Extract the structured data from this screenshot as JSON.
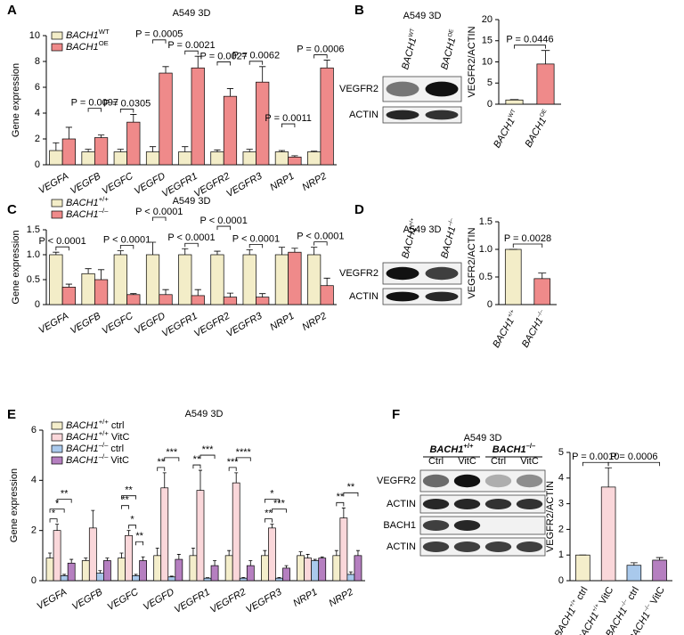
{
  "panel_labels": [
    "A",
    "B",
    "C",
    "D",
    "E",
    "F"
  ],
  "blots": [
    {
      "title": "A549 3D",
      "lanes": [
        "BACH1",
        "BACH1"
      ],
      "lane_sups": [
        "WT",
        "OE"
      ],
      "rows": [
        "VEGFR2",
        "ACTIN"
      ]
    },
    {
      "title": "A549 3D",
      "lanes": [
        "BACH1",
        "BACH1"
      ],
      "lane_sups": [
        "+/+",
        "–/–"
      ],
      "rows": [
        "VEGFR2",
        "ACTIN"
      ]
    },
    {
      "title": "A549 3D",
      "groups": [
        "BACH1",
        "BACH1"
      ],
      "group_sups": [
        "+/+",
        "–/–"
      ],
      "lanes": [
        "Ctrl",
        "VitC",
        "Ctrl",
        "VitC"
      ],
      "rows": [
        "VEGFR2",
        "ACTIN",
        "BACH1",
        "ACTIN"
      ]
    }
  ],
  "chart_data": [
    {
      "type": "bar",
      "title": "A549 3D",
      "y_label": "Gene expression",
      "categories": [
        "VEGFA",
        "VEGFB",
        "VEGFC",
        "VEGFD",
        "VEGFR1",
        "VEGFR2",
        "VEGFR3",
        "NRP1",
        "NRP2"
      ],
      "series": [
        {
          "name": "BACH1",
          "name_sup": "WT",
          "color": "#f3edc8",
          "values": [
            1.1,
            1.0,
            1.0,
            1.0,
            1.0,
            1.0,
            1.0,
            1.0,
            1.0
          ],
          "errors": [
            0.6,
            0.2,
            0.2,
            0.4,
            0.4,
            0.15,
            0.2,
            0.1,
            0.05
          ]
        },
        {
          "name": "BACH1",
          "name_sup": "OE",
          "color": "#ef8a8a",
          "values": [
            2.0,
            2.1,
            3.3,
            7.1,
            7.5,
            5.3,
            6.4,
            0.6,
            7.5
          ],
          "errors": [
            0.9,
            0.2,
            0.6,
            0.5,
            0.9,
            0.6,
            1.2,
            0.1,
            0.6
          ]
        }
      ],
      "ylim": [
        0,
        10
      ],
      "yticks": [
        0,
        2,
        4,
        6,
        8,
        10
      ],
      "annotations": [
        {
          "text": "P = 0.0097",
          "category": 1,
          "from": 0,
          "to": 1
        },
        {
          "text": "P = 0.0305",
          "category": 2,
          "from": 0,
          "to": 1
        },
        {
          "text": "P = 0.0005",
          "category": 3,
          "from": 0,
          "to": 1
        },
        {
          "text": "P = 0.0021",
          "category": 4,
          "from": 0,
          "to": 1
        },
        {
          "text": "P = 0.0027",
          "category": 5,
          "from": 0,
          "to": 1
        },
        {
          "text": "P = 0.0062",
          "category": 6,
          "from": 0,
          "to": 1
        },
        {
          "text": "P = 0.0011",
          "category": 7,
          "from": 0,
          "to": 1
        },
        {
          "text": "P = 0.0006",
          "category": 8,
          "from": 0,
          "to": 1
        }
      ]
    },
    {
      "type": "bar",
      "y_label": "VEGFR2/ACTIN",
      "categories": [
        "BACH1",
        "BACH1"
      ],
      "category_sups": [
        "WT",
        "OE"
      ],
      "values": [
        1.0,
        9.5
      ],
      "errors": [
        0.1,
        3.2
      ],
      "colors": [
        "#f3edc8",
        "#ef8a8a"
      ],
      "ylim": [
        0,
        20
      ],
      "yticks": [
        0,
        5,
        10,
        15,
        20
      ],
      "annotations": [
        {
          "text": "P = 0.0446",
          "from": 0,
          "to": 1
        }
      ]
    },
    {
      "type": "bar",
      "title": "A549 3D",
      "y_label": "Gene expression",
      "categories": [
        "VEGFA",
        "VEGFB",
        "VEGFC",
        "VEGFD",
        "VEGFR1",
        "VEGFR2",
        "VEGFR3",
        "NRP1",
        "NRP2"
      ],
      "series": [
        {
          "name": "BACH1",
          "name_sup": "+/+",
          "color": "#f3edc8",
          "values": [
            1.0,
            0.62,
            1.0,
            1.0,
            1.0,
            1.0,
            1.0,
            1.0,
            1.0
          ],
          "errors": [
            0.05,
            0.1,
            0.08,
            0.25,
            0.12,
            0.07,
            0.1,
            0.15,
            0.15
          ]
        },
        {
          "name": "BACH1",
          "name_sup": "–/–",
          "color": "#ef8a8a",
          "values": [
            0.35,
            0.5,
            0.2,
            0.2,
            0.18,
            0.15,
            0.15,
            1.05,
            0.38
          ],
          "errors": [
            0.06,
            0.2,
            0.02,
            0.1,
            0.12,
            0.08,
            0.07,
            0.08,
            0.15
          ]
        }
      ],
      "ylim": [
        0,
        1.5
      ],
      "yticks": [
        0,
        0.5,
        {
          "value": 1,
          "label": "1.0"
        },
        1.5
      ],
      "annotations": [
        {
          "text": "P < 0.0001",
          "category": 0,
          "from": 0,
          "to": 1
        },
        {
          "text": "P < 0.0001",
          "category": 2,
          "from": 0,
          "to": 1
        },
        {
          "text": "P < 0.0001",
          "category": 3,
          "from": 0,
          "to": 1
        },
        {
          "text": "P < 0.0001",
          "category": 4,
          "from": 0,
          "to": 1
        },
        {
          "text": "P < 0.0001",
          "category": 5,
          "from": 0,
          "to": 1
        },
        {
          "text": "P < 0.0001",
          "category": 6,
          "from": 0,
          "to": 1
        },
        {
          "text": "P < 0.0001",
          "category": 8,
          "from": 0,
          "to": 1
        }
      ]
    },
    {
      "type": "bar",
      "y_label": "VEGFR2/ACTIN",
      "categories": [
        "BACH1",
        "BACH1"
      ],
      "category_sups": [
        "+/+",
        "–/–"
      ],
      "values": [
        1.0,
        0.47
      ],
      "errors": [
        0,
        0.1
      ],
      "colors": [
        "#f3edc8",
        "#ef8a8a"
      ],
      "ylim": [
        0,
        1.5
      ],
      "yticks": [
        0,
        0.5,
        {
          "value": 1,
          "label": "1.0"
        },
        1.5
      ],
      "annotations": [
        {
          "text": "P = 0.0028",
          "from": 0,
          "to": 1
        }
      ]
    },
    {
      "type": "bar",
      "title": "A549 3D",
      "y_label": "Gene expression",
      "categories": [
        "VEGFA",
        "VEGFB",
        "VEGFC",
        "VEGFD",
        "VEGFR1",
        "VEGFR2",
        "VEGFR3",
        "NRP1",
        "NRP2"
      ],
      "series": [
        {
          "name": "BACH1",
          "name_sup": "+/+",
          "name_suffix": "ctrl",
          "color": "#f4eecb",
          "values": [
            0.9,
            0.8,
            0.9,
            1.0,
            1.0,
            1.0,
            1.0,
            1.0,
            1.0
          ],
          "errors": [
            0.2,
            0.1,
            0.2,
            0.3,
            0.3,
            0.2,
            0.2,
            0.15,
            0.2
          ]
        },
        {
          "name": "BACH1",
          "name_sup": "+/+",
          "name_suffix": "VitC",
          "color": "#fad7da",
          "values": [
            2.0,
            2.1,
            1.8,
            3.7,
            3.6,
            3.9,
            2.1,
            0.9,
            2.5
          ],
          "errors": [
            0.25,
            0.7,
            0.2,
            0.6,
            0.8,
            0.4,
            0.15,
            0.15,
            0.4
          ]
        },
        {
          "name": "BACH1",
          "name_sup": "–/–",
          "name_suffix": "ctrl",
          "color": "#a9c9ec",
          "values": [
            0.2,
            0.3,
            0.2,
            0.15,
            0.1,
            0.1,
            0.1,
            0.8,
            0.25
          ],
          "errors": [
            0.05,
            0.1,
            0.05,
            0.03,
            0.02,
            0.03,
            0.03,
            0.05,
            0.1
          ]
        },
        {
          "name": "BACH1",
          "name_sup": "–/–",
          "name_suffix": "VitC",
          "color": "#b57fc0",
          "values": [
            0.7,
            0.8,
            0.8,
            0.85,
            0.6,
            0.6,
            0.5,
            0.9,
            1.0
          ],
          "errors": [
            0.15,
            0.1,
            0.15,
            0.2,
            0.2,
            0.2,
            0.1,
            0.05,
            0.2
          ]
        }
      ],
      "ylim": [
        0,
        6
      ],
      "yticks": [
        0,
        2,
        4,
        6
      ],
      "annotations": [
        {
          "text": "*",
          "category": 0,
          "from": 0,
          "to": 1
        },
        {
          "text": "*",
          "category": 0,
          "from": 0,
          "to": 2
        },
        {
          "text": "**",
          "category": 0,
          "from": 1,
          "to": 3
        },
        {
          "text": "*",
          "category": 2,
          "from": 1,
          "to": 2
        },
        {
          "text": "**",
          "category": 2,
          "from": 2,
          "to": 3
        },
        {
          "text": "**",
          "category": 2,
          "from": 0,
          "to": 1
        },
        {
          "text": "**",
          "category": 2,
          "from": 0,
          "to": 2
        },
        {
          "text": "**",
          "category": 3,
          "from": 0,
          "to": 1
        },
        {
          "text": "***",
          "category": 3,
          "from": 1,
          "to": 3
        },
        {
          "text": "**",
          "category": 4,
          "from": 0,
          "to": 1
        },
        {
          "text": "***",
          "category": 4,
          "from": 1,
          "to": 3
        },
        {
          "text": "***",
          "category": 5,
          "from": 0,
          "to": 1
        },
        {
          "text": "****",
          "category": 5,
          "from": 1,
          "to": 3
        },
        {
          "text": "**",
          "category": 6,
          "from": 0,
          "to": 1
        },
        {
          "text": "***",
          "category": 6,
          "from": 1,
          "to": 3
        },
        {
          "text": "*",
          "category": 6,
          "from": 0,
          "to": 2
        },
        {
          "text": "**",
          "category": 8,
          "from": 0,
          "to": 1
        },
        {
          "text": "**",
          "category": 8,
          "from": 1,
          "to": 3
        }
      ]
    },
    {
      "type": "bar",
      "y_label": "VEGFR2/ACTIN",
      "categories": [
        "BACH1",
        "BACH1",
        "BACH1",
        "BACH1"
      ],
      "category_sups": [
        "+/+",
        "+/+",
        "–/–",
        "–/–"
      ],
      "category_suffixes": [
        "ctrl",
        "VitC",
        "ctrl",
        "VitC"
      ],
      "values": [
        1.0,
        3.65,
        0.6,
        0.8
      ],
      "errors": [
        0,
        0.75,
        0.1,
        0.1
      ],
      "colors": [
        "#f4eecb",
        "#fad7da",
        "#a9c9ec",
        "#b57fc0"
      ],
      "ylim": [
        0,
        5
      ],
      "yticks": [
        0,
        1,
        2,
        3,
        4,
        5
      ],
      "annotations": [
        {
          "text": "P = 0.0010",
          "from": 0,
          "to": 1
        },
        {
          "text": "P = 0.0006",
          "from": 1,
          "to": 3
        }
      ]
    }
  ]
}
